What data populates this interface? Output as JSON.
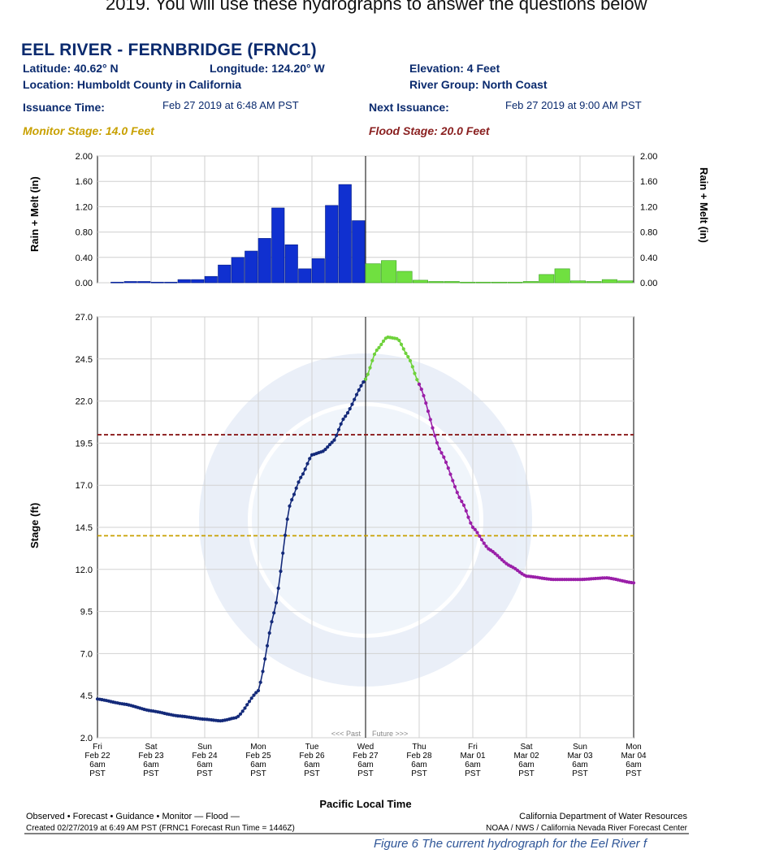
{
  "top_text": "2019. You will use these hydrographs to answer the questions below",
  "header": {
    "title": "EEL RIVER - FERNBRIDGE (FRNC1)",
    "latitude": "Latitude: 40.62° N",
    "longitude": "Longitude: 124.20° W",
    "elevation": "Elevation: 4 Feet",
    "location": "Location: Humboldt County in California",
    "river_group": "River Group: North Coast",
    "issuance_label": "Issuance Time:",
    "issuance_value": "Feb 27 2019 at 6:48 AM PST",
    "next_label": "Next Issuance:",
    "next_value": "Feb 27 2019 at 9:00 AM PST",
    "monitor_stage": "Monitor Stage: 14.0 Feet",
    "flood_stage": "Flood Stage: 20.0 Feet"
  },
  "footer": {
    "legend_text": "Observed  •  Forecast  •  Guidance  •  Monitor  —  Flood  —",
    "created": "Created 02/27/2019 at 6:49 AM PST   (FRNC1 Forecast Run Time = 1446Z)",
    "agency1": "California Department of Water Resources",
    "agency2": "NOAA / NWS / California Nevada River Forecast Center"
  },
  "caption": "Figure 6 The current hydrograph for the Eel River f",
  "colors": {
    "observed": "#142a7a",
    "forecast": "#6fd23c",
    "guidance": "#9a1fa8",
    "monitor": "#c8a000",
    "flood": "#8a1a1a",
    "precip_observed": "#1030d0",
    "precip_forecast": "#70e040"
  },
  "chart_data": [
    {
      "type": "bar",
      "ylabel": "Rain + Melt (in)",
      "ylim": [
        0,
        2.0
      ],
      "yticks": [
        "2.00",
        "1.60",
        "1.20",
        "0.80",
        "0.40",
        "0.00"
      ],
      "observed_values": [
        0.01,
        0.02,
        0.02,
        0.01,
        0.01,
        0.05,
        0.05,
        0.1,
        0.28,
        0.4,
        0.5,
        0.7,
        1.18,
        0.6,
        0.22,
        0.38,
        1.22,
        1.55,
        0.98
      ],
      "forecast_values": [
        0.3,
        0.35,
        0.18,
        0.04,
        0.02,
        0.02,
        0.01,
        0.01,
        0.01,
        0.01,
        0.02,
        0.13,
        0.22,
        0.03,
        0.02,
        0.05,
        0.03
      ]
    },
    {
      "type": "line",
      "ylabel": "Stage (ft)",
      "xlabel": "Pacific Local Time",
      "ylim": [
        2.0,
        27.0
      ],
      "yticks": [
        "27.0",
        "24.5",
        "22.0",
        "19.5",
        "17.0",
        "14.5",
        "12.0",
        "9.5",
        "7.0",
        "4.5",
        "2.0"
      ],
      "xtick_labels": [
        [
          "Fri",
          "Feb 22",
          "6am",
          "PST"
        ],
        [
          "Sat",
          "Feb 23",
          "6am",
          "PST"
        ],
        [
          "Sun",
          "Feb 24",
          "6am",
          "PST"
        ],
        [
          "Mon",
          "Feb 25",
          "6am",
          "PST"
        ],
        [
          "Tue",
          "Feb 26",
          "6am",
          "PST"
        ],
        [
          "Wed",
          "Feb 27",
          "6am",
          "PST"
        ],
        [
          "Thu",
          "Feb 28",
          "6am",
          "PST"
        ],
        [
          "Fri",
          "Mar 01",
          "6am",
          "PST"
        ],
        [
          "Sat",
          "Mar 02",
          "6am",
          "PST"
        ],
        [
          "Sun",
          "Mar 03",
          "6am",
          "PST"
        ],
        [
          "Mon",
          "Mar 04",
          "6am",
          "PST"
        ]
      ],
      "past_label": "<<< Past",
      "future_label": "Future >>>",
      "monitor_stage": 14.0,
      "flood_stage": 20.0,
      "series": [
        {
          "name": "Observed",
          "x": [
            0,
            0.5,
            1,
            1.5,
            2,
            2.3,
            2.6,
            3,
            3.3,
            3.6,
            3.8,
            4,
            4.2,
            4.4,
            4.6,
            5
          ],
          "y": [
            4.3,
            4.0,
            3.6,
            3.3,
            3.1,
            3.0,
            3.2,
            4.8,
            9.5,
            16.0,
            17.5,
            18.8,
            19.0,
            19.6,
            21.0,
            23.3
          ]
        },
        {
          "name": "Forecast",
          "x": [
            5,
            5.2,
            5.4,
            5.6,
            5.8,
            6
          ],
          "y": [
            23.3,
            25.0,
            25.8,
            25.7,
            24.6,
            23.0
          ]
        },
        {
          "name": "Guidance",
          "x": [
            6,
            6.4,
            6.8,
            7,
            7.3,
            7.7,
            8,
            8.5,
            9,
            9.5,
            10
          ],
          "y": [
            23.0,
            19.0,
            16.0,
            14.5,
            13.2,
            12.2,
            11.6,
            11.4,
            11.4,
            11.5,
            11.2
          ]
        }
      ]
    }
  ]
}
